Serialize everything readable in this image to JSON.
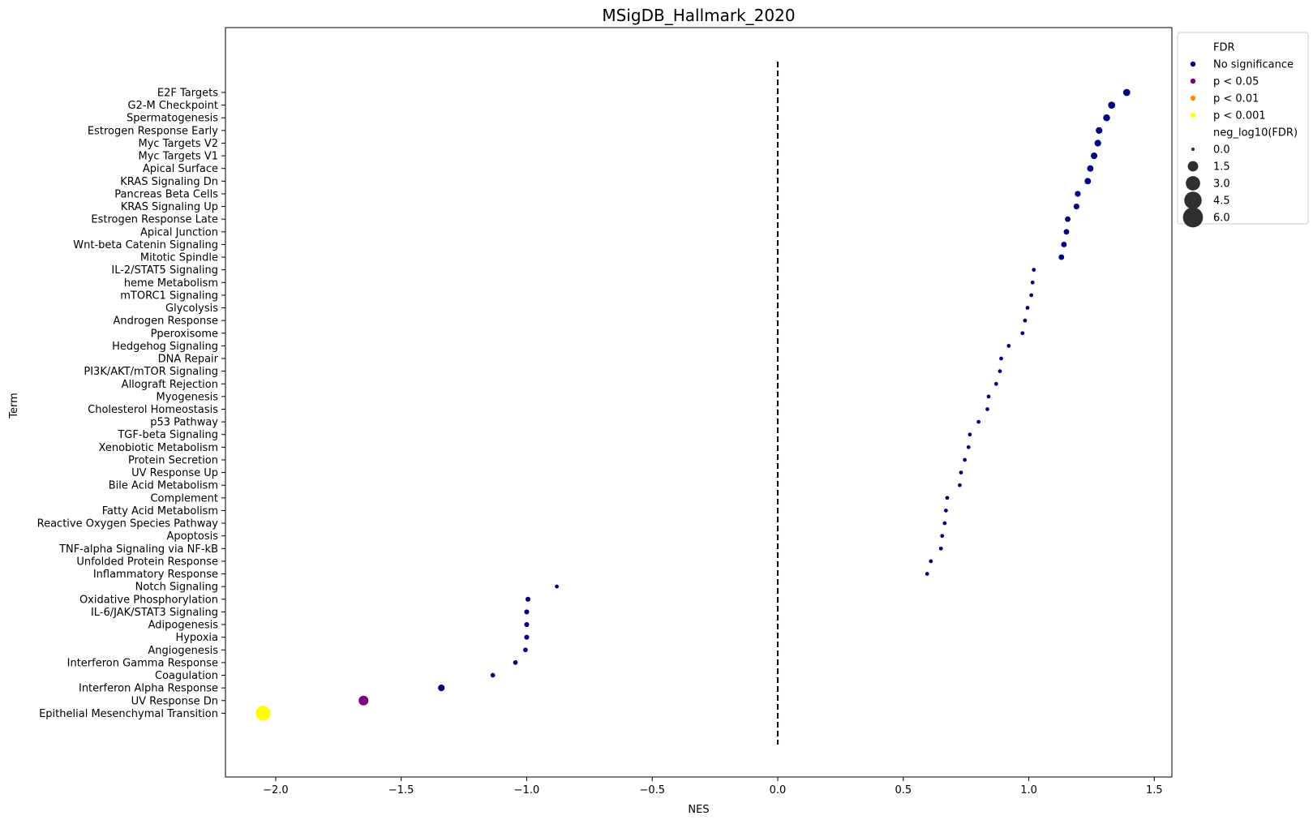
{
  "chart_data": {
    "type": "scatter",
    "title": "MSigDB_Hallmark_2020",
    "xlabel": "NES",
    "ylabel": "Term",
    "xlim": [
      -2.2,
      1.57
    ],
    "xticks": [
      -2.0,
      -1.5,
      -1.0,
      -0.5,
      0.0,
      0.5,
      1.0,
      1.5
    ],
    "xtick_labels": [
      "−2.0",
      "−1.5",
      "−1.0",
      "−0.5",
      "0.0",
      "0.5",
      "1.0",
      "1.5"
    ],
    "reference_line": {
      "x": 0,
      "style": "dashed"
    },
    "grid": false,
    "legend_placement": "outside right, top",
    "colors": {
      "No significance": "#000080",
      "p < 0.05": "#800080",
      "p < 0.01": "#ff8c00",
      "p < 0.001": "#ffff00"
    },
    "legend": {
      "color_title": "FDR",
      "color_entries": [
        "No significance",
        "p < 0.05",
        "p < 0.01",
        "p < 0.001"
      ],
      "size_title": "neg_log10(FDR)",
      "size_entries": [
        "0.0",
        "1.5",
        "3.0",
        "4.5",
        "6.0"
      ],
      "size_values": [
        0.0,
        1.5,
        3.0,
        4.5,
        6.0
      ]
    },
    "points": [
      {
        "term": "E2F Targets",
        "nes": 1.39,
        "neg_log10_fdr": 0.6,
        "fdr_class": "No significance"
      },
      {
        "term": "G2-M Checkpoint",
        "nes": 1.33,
        "neg_log10_fdr": 0.6,
        "fdr_class": "No significance"
      },
      {
        "term": "Spermatogenesis",
        "nes": 1.31,
        "neg_log10_fdr": 0.55,
        "fdr_class": "No significance"
      },
      {
        "term": "Estrogen Response Early",
        "nes": 1.28,
        "neg_log10_fdr": 0.5,
        "fdr_class": "No significance"
      },
      {
        "term": "Myc Targets V2",
        "nes": 1.275,
        "neg_log10_fdr": 0.5,
        "fdr_class": "No significance"
      },
      {
        "term": "Myc Targets V1",
        "nes": 1.26,
        "neg_log10_fdr": 0.5,
        "fdr_class": "No significance"
      },
      {
        "term": "Apical Surface",
        "nes": 1.245,
        "neg_log10_fdr": 0.45,
        "fdr_class": "No significance"
      },
      {
        "term": "KRAS Signaling Dn",
        "nes": 1.235,
        "neg_log10_fdr": 0.45,
        "fdr_class": "No significance"
      },
      {
        "term": "Pancreas Beta Cells",
        "nes": 1.195,
        "neg_log10_fdr": 0.35,
        "fdr_class": "No significance"
      },
      {
        "term": "KRAS Signaling Up",
        "nes": 1.19,
        "neg_log10_fdr": 0.35,
        "fdr_class": "No significance"
      },
      {
        "term": "Estrogen Response Late",
        "nes": 1.155,
        "neg_log10_fdr": 0.3,
        "fdr_class": "No significance"
      },
      {
        "term": "Apical Junction",
        "nes": 1.15,
        "neg_log10_fdr": 0.3,
        "fdr_class": "No significance"
      },
      {
        "term": "Wnt-beta Catenin Signaling",
        "nes": 1.14,
        "neg_log10_fdr": 0.3,
        "fdr_class": "No significance"
      },
      {
        "term": "Mitotic Spindle",
        "nes": 1.13,
        "neg_log10_fdr": 0.3,
        "fdr_class": "No significance"
      },
      {
        "term": "IL-2/STAT5 Signaling",
        "nes": 1.02,
        "neg_log10_fdr": 0.05,
        "fdr_class": "No significance"
      },
      {
        "term": "heme Metabolism",
        "nes": 1.015,
        "neg_log10_fdr": 0.05,
        "fdr_class": "No significance"
      },
      {
        "term": "mTORC1 Signaling",
        "nes": 1.01,
        "neg_log10_fdr": 0.05,
        "fdr_class": "No significance"
      },
      {
        "term": "Glycolysis",
        "nes": 0.995,
        "neg_log10_fdr": 0.05,
        "fdr_class": "No significance"
      },
      {
        "term": "Androgen Response",
        "nes": 0.985,
        "neg_log10_fdr": 0.05,
        "fdr_class": "No significance"
      },
      {
        "term": "Pperoxisome",
        "nes": 0.975,
        "neg_log10_fdr": 0.05,
        "fdr_class": "No significance"
      },
      {
        "term": "Hedgehog Signaling",
        "nes": 0.92,
        "neg_log10_fdr": 0.05,
        "fdr_class": "No significance"
      },
      {
        "term": "DNA Repair",
        "nes": 0.89,
        "neg_log10_fdr": 0.05,
        "fdr_class": "No significance"
      },
      {
        "term": "PI3K/AKT/mTOR  Signaling",
        "nes": 0.885,
        "neg_log10_fdr": 0.05,
        "fdr_class": "No significance"
      },
      {
        "term": "Allograft Rejection",
        "nes": 0.87,
        "neg_log10_fdr": 0.05,
        "fdr_class": "No significance"
      },
      {
        "term": "Myogenesis",
        "nes": 0.84,
        "neg_log10_fdr": 0.05,
        "fdr_class": "No significance"
      },
      {
        "term": "Cholesterol Homeostasis",
        "nes": 0.835,
        "neg_log10_fdr": 0.05,
        "fdr_class": "No significance"
      },
      {
        "term": "p53 Pathway",
        "nes": 0.8,
        "neg_log10_fdr": 0.05,
        "fdr_class": "No significance"
      },
      {
        "term": "TGF-beta Signaling",
        "nes": 0.765,
        "neg_log10_fdr": 0.05,
        "fdr_class": "No significance"
      },
      {
        "term": "Xenobiotic Metabolism",
        "nes": 0.76,
        "neg_log10_fdr": 0.05,
        "fdr_class": "No significance"
      },
      {
        "term": "Protein Secretion",
        "nes": 0.745,
        "neg_log10_fdr": 0.05,
        "fdr_class": "No significance"
      },
      {
        "term": "UV Response Up",
        "nes": 0.73,
        "neg_log10_fdr": 0.05,
        "fdr_class": "No significance"
      },
      {
        "term": "Bile Acid Metabolism",
        "nes": 0.725,
        "neg_log10_fdr": 0.05,
        "fdr_class": "No significance"
      },
      {
        "term": "Complement",
        "nes": 0.675,
        "neg_log10_fdr": 0.05,
        "fdr_class": "No significance"
      },
      {
        "term": "Fatty Acid Metabolism",
        "nes": 0.67,
        "neg_log10_fdr": 0.05,
        "fdr_class": "No significance"
      },
      {
        "term": "Reactive Oxygen Species Pathway",
        "nes": 0.665,
        "neg_log10_fdr": 0.05,
        "fdr_class": "No significance"
      },
      {
        "term": "Apoptosis",
        "nes": 0.655,
        "neg_log10_fdr": 0.05,
        "fdr_class": "No significance"
      },
      {
        "term": "TNF-alpha Signaling via NF-kB",
        "nes": 0.65,
        "neg_log10_fdr": 0.05,
        "fdr_class": "No significance"
      },
      {
        "term": "Unfolded Protein Response",
        "nes": 0.61,
        "neg_log10_fdr": 0.05,
        "fdr_class": "No significance"
      },
      {
        "term": "Inflammatory Response",
        "nes": 0.595,
        "neg_log10_fdr": 0.05,
        "fdr_class": "No significance"
      },
      {
        "term": "Notch Signaling",
        "nes": -0.88,
        "neg_log10_fdr": 0.05,
        "fdr_class": "No significance"
      },
      {
        "term": "Oxidative Phosphorylation",
        "nes": -0.995,
        "neg_log10_fdr": 0.2,
        "fdr_class": "No significance"
      },
      {
        "term": "IL-6/JAK/STAT3 Signaling",
        "nes": -1.0,
        "neg_log10_fdr": 0.2,
        "fdr_class": "No significance"
      },
      {
        "term": "Adipogenesis",
        "nes": -1.0,
        "neg_log10_fdr": 0.2,
        "fdr_class": "No significance"
      },
      {
        "term": "Hypoxia",
        "nes": -1.0,
        "neg_log10_fdr": 0.2,
        "fdr_class": "No significance"
      },
      {
        "term": "Angiogenesis",
        "nes": -1.005,
        "neg_log10_fdr": 0.15,
        "fdr_class": "No significance"
      },
      {
        "term": "Interferon Gamma Response",
        "nes": -1.045,
        "neg_log10_fdr": 0.15,
        "fdr_class": "No significance"
      },
      {
        "term": "Coagulation",
        "nes": -1.135,
        "neg_log10_fdr": 0.15,
        "fdr_class": "No significance"
      },
      {
        "term": "Interferon Alpha Response",
        "nes": -1.34,
        "neg_log10_fdr": 0.5,
        "fdr_class": "No significance"
      },
      {
        "term": "UV Response Dn",
        "nes": -1.65,
        "neg_log10_fdr": 1.3,
        "fdr_class": "p < 0.05"
      },
      {
        "term": "Epithelial Mesenchymal Transition",
        "nes": -2.05,
        "neg_log10_fdr": 3.3,
        "fdr_class": "p < 0.001"
      }
    ]
  }
}
